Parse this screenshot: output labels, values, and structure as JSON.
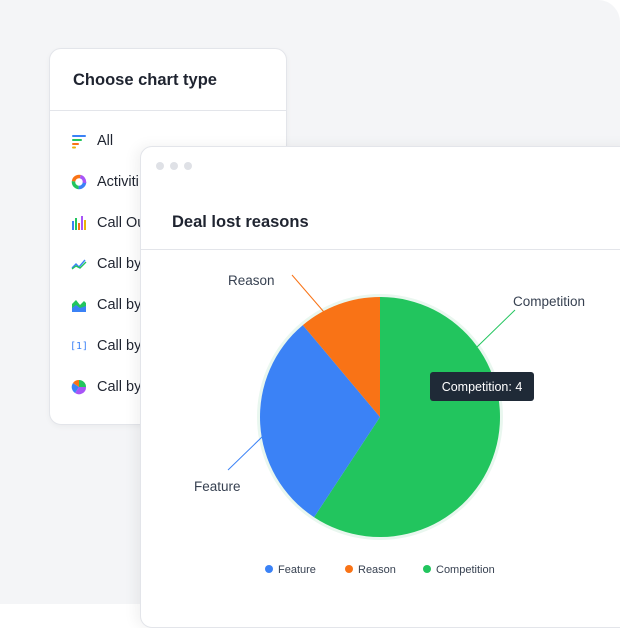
{
  "chooser": {
    "title": "Choose chart type",
    "items": [
      {
        "label": "All",
        "icon": "list-bars-icon"
      },
      {
        "label": "Activiti",
        "icon": "donut-icon"
      },
      {
        "label": "Call Ou",
        "icon": "bar-chart-icon"
      },
      {
        "label": "Call by",
        "icon": "line-chart-icon"
      },
      {
        "label": "Call by",
        "icon": "area-chart-icon"
      },
      {
        "label": "Call by",
        "icon": "number-icon"
      },
      {
        "label": "Call by",
        "icon": "pie-icon"
      }
    ],
    "number_icon_text": "[1]"
  },
  "card": {
    "title": "Deal lost reasons"
  },
  "tooltip": {
    "text": "Competition: 4"
  },
  "chart_data": {
    "type": "pie",
    "title": "Deal lost reasons",
    "slices": [
      {
        "label": "Competition",
        "value": 4,
        "color": "#22c55e"
      },
      {
        "label": "Feature",
        "value": 2,
        "color": "#3b82f6"
      },
      {
        "label": "Reason",
        "value": 0.75,
        "color": "#f97316"
      }
    ],
    "legend": {
      "position": "bottom",
      "entries": [
        "Feature",
        "Reason",
        "Competition"
      ]
    },
    "legend_colors": {
      "Feature": "#3b82f6",
      "Reason": "#f97316",
      "Competition": "#22c55e"
    }
  }
}
